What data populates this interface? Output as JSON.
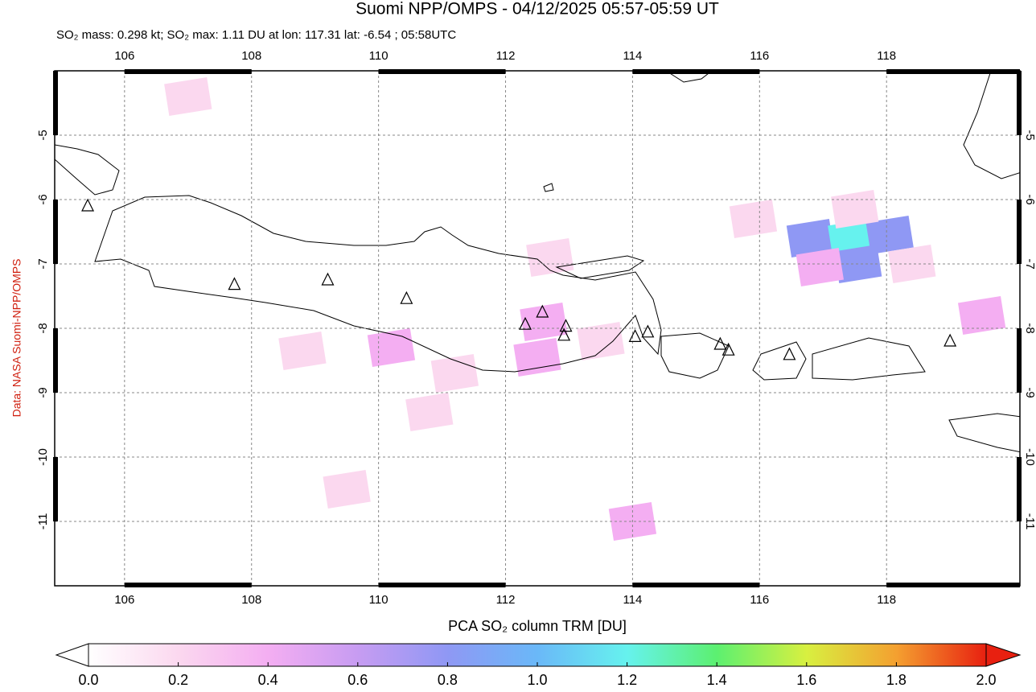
{
  "chart_data": {
    "type": "map",
    "title": "Suomi NPP/OMPS - 04/12/2025 05:57-05:59 UT",
    "subtitle": "SO₂ mass: 0.298 kt; SO₂ max: 1.11 DU at lon: 117.31 lat: -6.54 ; 05:58UTC",
    "side_label": "Data: NASA Suomi-NPP/OMPS",
    "colorbar_label": "PCA SO₂ column TRM [DU]",
    "xlim": [
      104.9,
      120.1
    ],
    "ylim": [
      -12,
      -4
    ],
    "xticks": [
      106,
      108,
      110,
      112,
      114,
      116,
      118
    ],
    "yticks": [
      -5,
      -6,
      -7,
      -8,
      -9,
      -10,
      -11
    ],
    "grid": true,
    "clim": [
      0,
      2
    ],
    "cticks": [
      {
        "value": 0,
        "label": "0.0"
      },
      {
        "value": 0.2,
        "label": "0.2"
      },
      {
        "value": 0.4,
        "label": "0.4"
      },
      {
        "value": 0.6,
        "label": "0.6"
      },
      {
        "value": 0.8,
        "label": "0.8"
      },
      {
        "value": 1,
        "label": "1.0"
      },
      {
        "value": 1.2,
        "label": "1.2"
      },
      {
        "value": 1.4,
        "label": "1.4"
      },
      {
        "value": 1.6,
        "label": "1.6"
      },
      {
        "value": 1.8,
        "label": "1.8"
      },
      {
        "value": 2,
        "label": "2.0"
      }
    ],
    "colormap": [
      "#ffffff",
      "#fbd8ef",
      "#f4aef2",
      "#c79cf2",
      "#8f98f4",
      "#6ab8f8",
      "#66f2ee",
      "#5cf070",
      "#d8f040",
      "#f4a030",
      "#e82010"
    ],
    "so2_pixels": {
      "lon": [
        116.8,
        117.45,
        118.05,
        117.55,
        116.95,
        118.4,
        112.6,
        112.5,
        110.2,
        111.2,
        119.5,
        117.5,
        114.0,
        113.5,
        108.8,
        107.0,
        115.9,
        109.5,
        112.7,
        110.8
      ],
      "lat": [
        -6.6,
        -6.6,
        -6.55,
        -7.0,
        -7.05,
        -7.0,
        -7.9,
        -8.45,
        -8.3,
        -8.7,
        -7.8,
        -6.15,
        -11.0,
        -8.2,
        -8.35,
        -4.4,
        -6.3,
        -10.5,
        -6.9,
        -9.3
      ],
      "values": [
        0.72,
        1.11,
        0.72,
        0.7,
        0.4,
        0.25,
        0.45,
        0.35,
        0.35,
        0.25,
        0.35,
        0.12,
        0.3,
        0.2,
        0.2,
        0.12,
        0.1,
        0.15,
        0.2,
        0.15
      ]
    },
    "volcanoes": {
      "lon": [
        105.42,
        107.73,
        109.2,
        110.44,
        112.31,
        112.58,
        112.95,
        112.92,
        114.04,
        114.24,
        115.38,
        115.51,
        116.47,
        119.0
      ],
      "lat": [
        -6.1,
        -7.32,
        -7.25,
        -7.54,
        -7.94,
        -7.75,
        -7.97,
        -8.11,
        -8.13,
        -8.06,
        -8.25,
        -8.34,
        -8.41,
        -8.2
      ]
    }
  }
}
